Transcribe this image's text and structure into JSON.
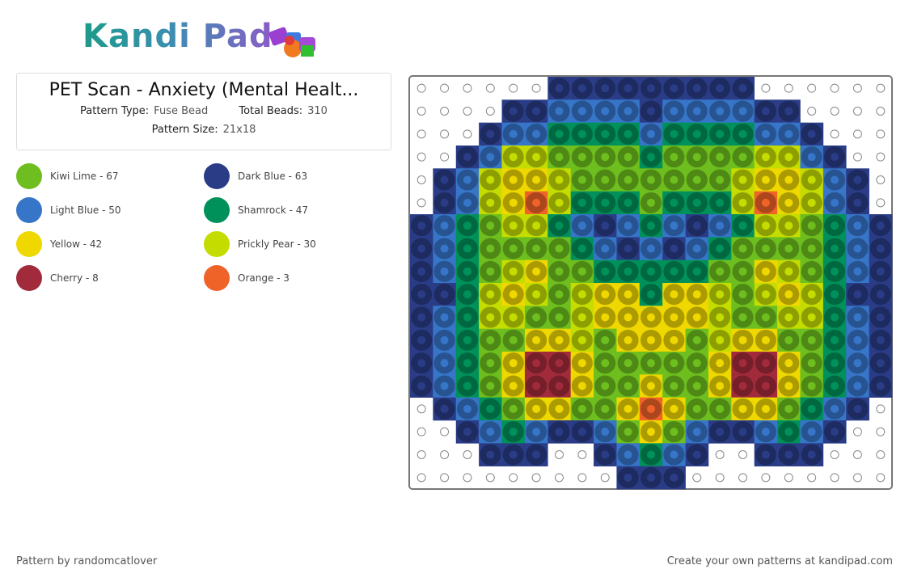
{
  "logo": "Kandi Pad",
  "header": {
    "title": "PET Scan - Anxiety (Mental Healt...",
    "fields": [
      {
        "label": "Pattern Type:",
        "value": "Fuse Bead"
      },
      {
        "label": "Total Beads:",
        "value": "310"
      },
      {
        "label": "Pattern Size:",
        "value": "21x18"
      }
    ]
  },
  "legend": [
    {
      "code": "K",
      "label": "Kiwi Lime - 67",
      "color": "#6dbe1e"
    },
    {
      "code": "D",
      "label": "Dark Blue - 63",
      "color": "#2a3c86"
    },
    {
      "code": "L",
      "label": "Light Blue - 50",
      "color": "#3675c8"
    },
    {
      "code": "S",
      "label": "Shamrock - 47",
      "color": "#00915a"
    },
    {
      "code": "Y",
      "label": "Yellow - 42",
      "color": "#efd700"
    },
    {
      "code": "P",
      "label": "Prickly Pear - 30",
      "color": "#c4dc00"
    },
    {
      "code": "C",
      "label": "Cherry - 8",
      "color": "#a12b3b"
    },
    {
      "code": "O",
      "label": "Orange - 3",
      "color": "#ef6228"
    }
  ],
  "grid": [
    "......DDDDDDDDD......",
    "....DDLLLLDLLLLDD....",
    "...DLLSSSSLSSSSLLD...",
    "..DLPPKKKKSKKKKPPLD..",
    ".DLPYYPKKKKKKKPYYPLD.",
    ".DLPYOPSSSKSSSPOYPLD.",
    "DLSKPPSLDLSLDLSPPKSLD",
    "DLSKKKKSLDLDLSKKKKSLD",
    "DLSKPYKKSSSSSKKYPKSLD",
    "DDSPYPKPYYSYYPKPYPSDD",
    "DLSPPKKPYYYYYPKKPPSLD",
    "DLSKKYYPKYYYKPYYKKSLD",
    "DLSKYCCYKKKKKYCCYKSLD",
    "DLSKYCCYKKYKKYCCYKSLD",
    ".DLSKYYKKYOYKKYYKSLD.",
    "..DLSLDDLKYKLDDLSLD..",
    "...DDD..DLSLD..DDD...",
    ".........DDD........."
  ],
  "footer": {
    "left": "Pattern by randomcatlover",
    "right": "Create your own patterns at kandipad.com"
  }
}
